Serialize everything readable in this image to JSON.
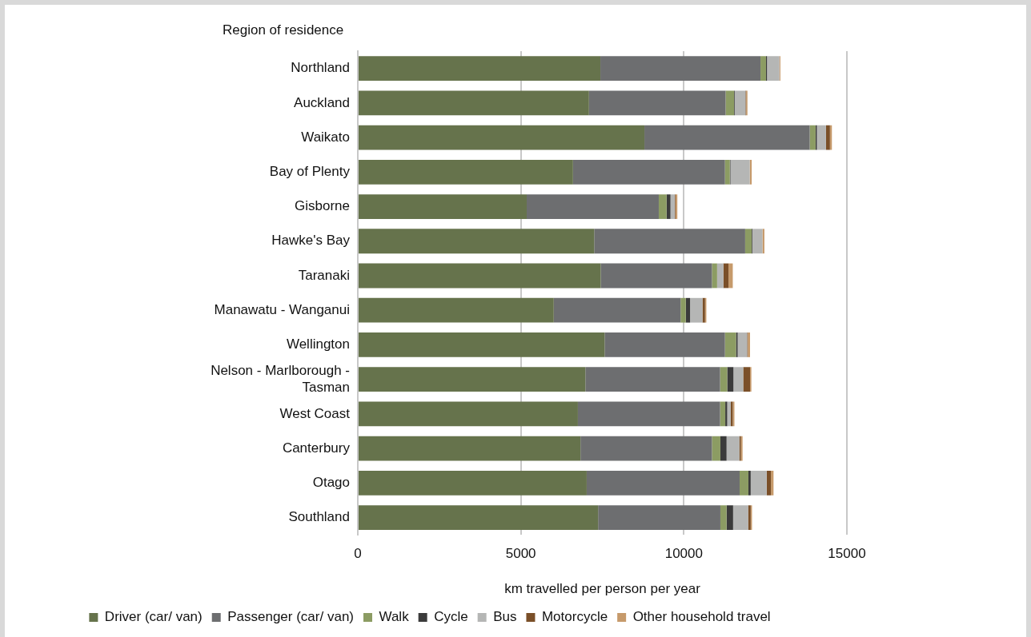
{
  "chart_data": {
    "type": "bar",
    "orientation": "horizontal",
    "stacked": true,
    "ylabel": "Region of residence",
    "xlabel": "km travelled per person per year",
    "categories": [
      "Northland",
      "Auckland",
      "Waikato",
      "Bay of Plenty",
      "Gisborne",
      "Hawke's Bay",
      "Taranaki",
      "Manawatu - Wanganui",
      "Wellington",
      "Nelson - Marlborough - Tasman",
      "West Coast",
      "Canterbury",
      "Otago",
      "Southland"
    ],
    "series": [
      {
        "name": "Driver (car/ van)",
        "color": "#66734c",
        "values": [
          7440,
          7090,
          8790,
          6600,
          5180,
          7250,
          7450,
          6010,
          7570,
          6980,
          6750,
          6830,
          7020,
          7370
        ]
      },
      {
        "name": "Passenger (car/ van)",
        "color": "#6d6e70",
        "values": [
          4910,
          4190,
          5070,
          4660,
          4050,
          4630,
          3410,
          3890,
          3690,
          4130,
          4360,
          4030,
          4690,
          3750
        ]
      },
      {
        "name": "Walk",
        "color": "#8c9c63",
        "values": [
          170,
          260,
          180,
          150,
          240,
          200,
          160,
          160,
          340,
          220,
          160,
          260,
          270,
          190
        ]
      },
      {
        "name": "Cycle",
        "color": "#3b3b3b",
        "values": [
          30,
          20,
          40,
          20,
          120,
          20,
          null,
          130,
          50,
          190,
          60,
          190,
          70,
          200
        ]
      },
      {
        "name": "Bus",
        "color": "#b5b6b5",
        "values": [
          380,
          330,
          280,
          590,
          130,
          310,
          190,
          380,
          290,
          300,
          110,
          390,
          490,
          460
        ]
      },
      {
        "name": "Motorcycle",
        "color": "#7a4f28",
        "values": [
          null,
          20,
          120,
          null,
          20,
          null,
          160,
          80,
          20,
          210,
          60,
          50,
          130,
          80
        ]
      },
      {
        "name": "Other household travel",
        "color": "#c69a6b",
        "values": [
          30,
          40,
          60,
          60,
          60,
          60,
          130,
          40,
          70,
          40,
          50,
          50,
          80,
          40
        ]
      }
    ],
    "xlim": [
      0,
      15000
    ],
    "xticks": [
      0,
      5000,
      10000,
      15000
    ],
    "grid": "x",
    "legend": "bottom"
  }
}
